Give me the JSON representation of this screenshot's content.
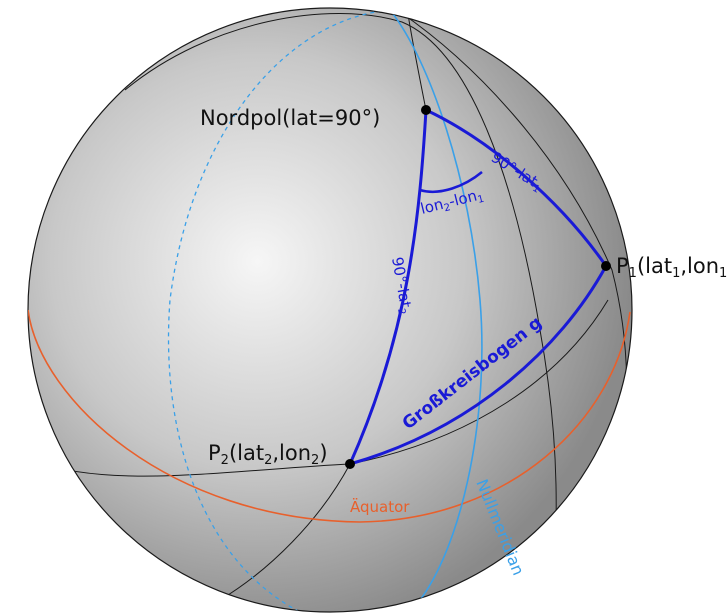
{
  "diagram": {
    "north_pole": {
      "text": "Nordpol(lat=90°)"
    },
    "p1": {
      "prefix": "P",
      "sub": "1",
      "open": "(lat",
      "sub_lat": "1",
      "comma": ",lon",
      "sub_lon": "1",
      "close": ")"
    },
    "p2": {
      "prefix": "P",
      "sub": "2",
      "open": "(lat",
      "sub_lat": "2",
      "comma": ",lon",
      "sub_lon": "2",
      "close": ")"
    },
    "angle_label": {
      "a": "lon",
      "a_sub": "2",
      "b": "-lon",
      "b_sub": "1"
    },
    "colat1": {
      "text": "90°-lat",
      "sub": "1"
    },
    "colat2": {
      "text": "90°-lat",
      "sub": "2"
    },
    "great_circle": {
      "text": "Großkreisbogen g"
    },
    "equator": {
      "text": "Äquator"
    },
    "prime_meridian": {
      "text": "Nullmeridian"
    },
    "colors": {
      "sphere_light": "#f2f2f2",
      "sphere_dark": "#8a8a8a",
      "triangle": "#1a1ad6",
      "equator": "#e8602c",
      "meridian": "#3aa0e8",
      "lines": "#1a1a1a"
    }
  }
}
